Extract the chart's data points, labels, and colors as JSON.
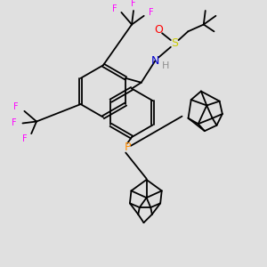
{
  "bg_color": "#e0e0e0",
  "atom_colors": {
    "F": "#ff00ff",
    "O": "#ff0000",
    "S": "#cccc00",
    "N": "#0000cc",
    "H": "#909090",
    "P": "#ff8c00",
    "C": "#000000"
  },
  "bond_color": "#000000",
  "bond_width": 1.3,
  "font_size_atom": 8,
  "figsize": [
    3.0,
    3.0
  ],
  "dpi": 100
}
